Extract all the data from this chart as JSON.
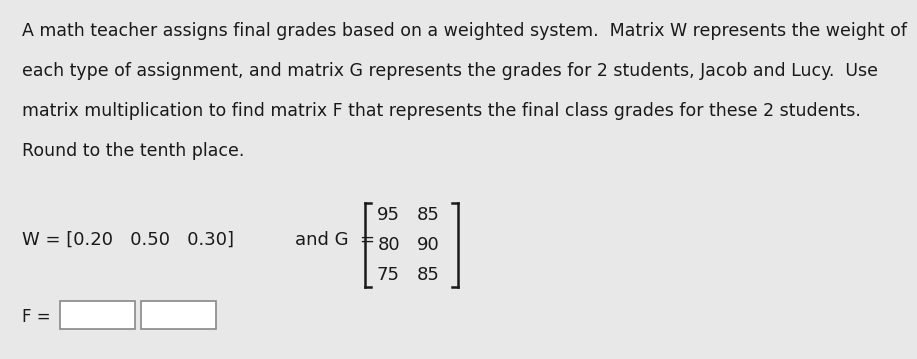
{
  "paragraph_lines": [
    "A math teacher assigns final grades based on a weighted system.  Matrix W represents the weight of",
    "each type of assignment, and matrix G represents the grades for 2 students, Jacob and Lucy.  Use",
    "matrix multiplication to find matrix F that represents the final class grades for these 2 students.",
    "Round to the tenth place."
  ],
  "W_text": "W = [0.20   0.50   0.30]and G  =",
  "W_part": "W = [0.20   0.50   0.30]",
  "andG_part": "and G  =",
  "G_matrix": [
    [
      95,
      85
    ],
    [
      80,
      90
    ],
    [
      75,
      85
    ]
  ],
  "F_label": "F =",
  "bg_color": "#e8e8e8",
  "text_color": "#1a1a1a",
  "font_size_body": 12.5,
  "font_size_matrix": 13.0,
  "box_color": "#ffffff",
  "box_edge_color": "#888888"
}
